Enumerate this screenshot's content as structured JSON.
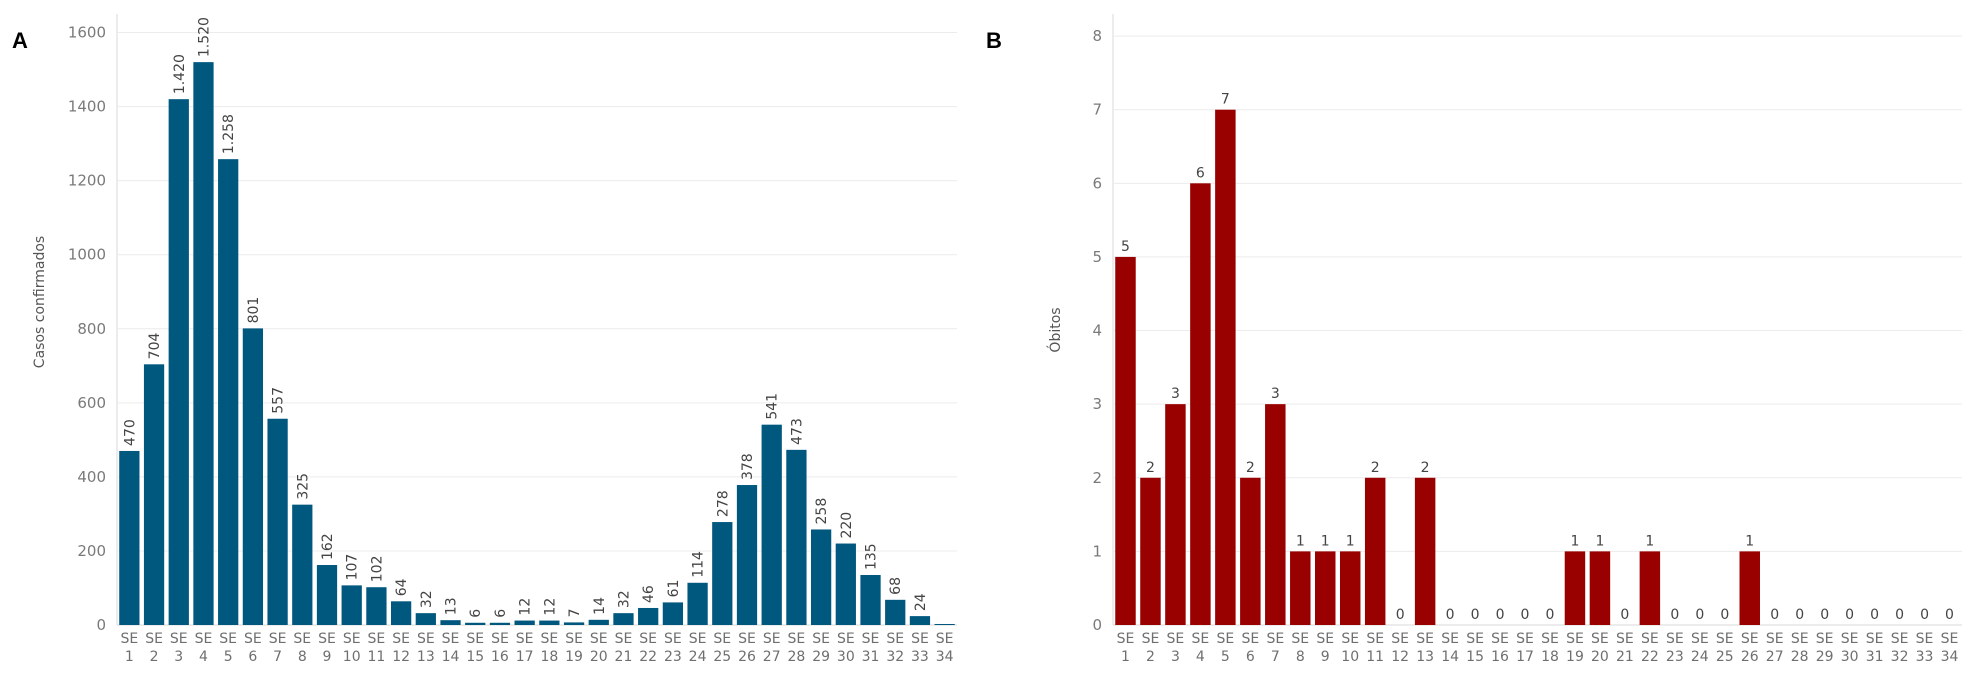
{
  "panels": {
    "a_label": "A",
    "b_label": "B"
  },
  "chart_data": [
    {
      "type": "bar",
      "panel": "A",
      "ylabel": "Casos confirmados",
      "xlabel": "",
      "ylim": [
        0,
        1650
      ],
      "yticks": [
        0,
        200,
        400,
        600,
        800,
        1000,
        1200,
        1400,
        1600
      ],
      "grid": true,
      "color": "#00587f",
      "categories": [
        "SE 1",
        "SE 2",
        "SE 3",
        "SE 4",
        "SE 5",
        "SE 6",
        "SE 7",
        "SE 8",
        "SE 9",
        "SE 10",
        "SE 11",
        "SE 12",
        "SE 13",
        "SE 14",
        "SE 15",
        "SE 16",
        "SE 17",
        "SE 18",
        "SE 19",
        "SE 20",
        "SE 21",
        "SE 22",
        "SE 23",
        "SE 24",
        "SE 25",
        "SE 26",
        "SE 27",
        "SE 28",
        "SE 29",
        "SE 30",
        "SE 31",
        "SE 32",
        "SE 33",
        "SE 34"
      ],
      "values": [
        470,
        704,
        1420,
        1520,
        1258,
        801,
        557,
        325,
        162,
        107,
        102,
        64,
        32,
        13,
        6,
        6,
        12,
        12,
        7,
        14,
        32,
        46,
        61,
        114,
        278,
        378,
        541,
        473,
        258,
        220,
        135,
        68,
        24,
        null
      ],
      "data_labels": [
        "470",
        "704",
        "1.420",
        "1.520",
        "1.258",
        "801",
        "557",
        "325",
        "162",
        "107",
        "102",
        "64",
        "32",
        "13",
        "6",
        "6",
        "12",
        "12",
        "7",
        "14",
        "32",
        "46",
        "61",
        "114",
        "278",
        "378",
        "541",
        "473",
        "258",
        "220",
        "135",
        "68",
        "24",
        ""
      ],
      "label_orientation": "vertical"
    },
    {
      "type": "bar",
      "panel": "B",
      "ylabel": "Óbitos",
      "xlabel": "",
      "ylim": [
        0,
        8
      ],
      "yticks": [
        0,
        1,
        2,
        3,
        4,
        5,
        6,
        7,
        8
      ],
      "grid": true,
      "color": "#990000",
      "categories": [
        "SE 1",
        "SE 2",
        "SE 3",
        "SE 4",
        "SE 5",
        "SE 6",
        "SE 7",
        "SE 8",
        "SE 9",
        "SE 10",
        "SE 11",
        "SE 12",
        "SE 13",
        "SE 14",
        "SE 15",
        "SE 16",
        "SE 17",
        "SE 18",
        "SE 19",
        "SE 20",
        "SE 21",
        "SE 22",
        "SE 23",
        "SE 24",
        "SE 25",
        "SE 26",
        "SE 27",
        "SE 28",
        "SE 29",
        "SE 30",
        "SE 31",
        "SE 32",
        "SE 33",
        "SE 34"
      ],
      "values": [
        5,
        2,
        3,
        6,
        7,
        2,
        3,
        1,
        1,
        1,
        2,
        0,
        2,
        0,
        0,
        0,
        0,
        0,
        1,
        1,
        0,
        1,
        0,
        0,
        0,
        1,
        0,
        0,
        0,
        0,
        0,
        0,
        0,
        0
      ],
      "data_labels": [
        "5",
        "2",
        "3",
        "6",
        "7",
        "2",
        "3",
        "1",
        "1",
        "1",
        "2",
        "0",
        "2",
        "0",
        "0",
        "0",
        "0",
        "0",
        "1",
        "1",
        "0",
        "1",
        "0",
        "0",
        "0",
        "1",
        "0",
        "0",
        "0",
        "0",
        "0",
        "0",
        "0",
        "0"
      ],
      "label_orientation": "horizontal"
    }
  ]
}
